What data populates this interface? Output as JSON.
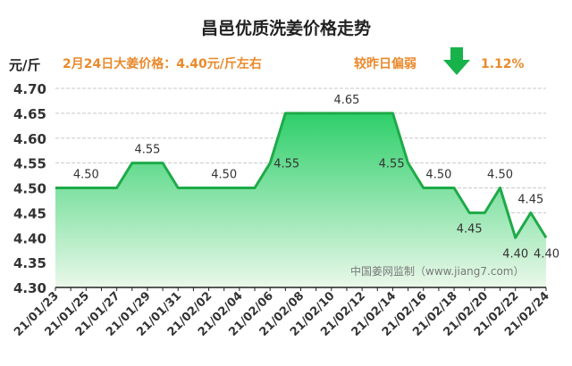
{
  "chart_data": {
    "type": "area",
    "title": "昌邑优质洗姜价格走势",
    "ylabel": "元/斤",
    "info_text": "2月24日大姜价格：4.40元/斤左右",
    "change_label": "较昨日偏弱",
    "change_value": "1.12%",
    "watermark": "中国姜网监制（www.jiang7.com）",
    "ylim": [
      4.3,
      4.7
    ],
    "y_ticks": [
      "4.30",
      "4.35",
      "4.40",
      "4.45",
      "4.50",
      "4.55",
      "4.60",
      "4.65",
      "4.70"
    ],
    "grid": true,
    "x": [
      "21/01/23",
      "21/01/24",
      "21/01/25",
      "21/01/26",
      "21/01/27",
      "21/01/28",
      "21/01/29",
      "21/01/30",
      "21/01/31",
      "21/02/01",
      "21/02/02",
      "21/02/03",
      "21/02/04",
      "21/02/05",
      "21/02/06",
      "21/02/07",
      "21/02/08",
      "21/02/09",
      "21/02/10",
      "21/02/11",
      "21/02/12",
      "21/02/13",
      "21/02/14",
      "21/02/15",
      "21/02/16",
      "21/02/17",
      "21/02/18",
      "21/02/19",
      "21/02/20",
      "21/02/21",
      "21/02/22",
      "21/02/23",
      "21/02/24"
    ],
    "x_tick_labels": [
      "21/01/23",
      "21/01/25",
      "21/01/27",
      "21/01/29",
      "21/01/31",
      "21/02/02",
      "21/02/04",
      "21/02/06",
      "21/02/08",
      "21/02/10",
      "21/02/12",
      "21/02/14",
      "21/02/16",
      "21/02/18",
      "21/02/20",
      "21/02/22",
      "21/02/24"
    ],
    "values": [
      4.5,
      4.5,
      4.5,
      4.5,
      4.5,
      4.55,
      4.55,
      4.55,
      4.5,
      4.5,
      4.5,
      4.5,
      4.5,
      4.5,
      4.55,
      4.65,
      4.65,
      4.65,
      4.65,
      4.65,
      4.65,
      4.65,
      4.65,
      4.55,
      4.5,
      4.5,
      4.5,
      4.45,
      4.45,
      4.5,
      4.4,
      4.45,
      4.4
    ],
    "data_labels": [
      {
        "index": 2,
        "text": "4.50",
        "pos": "above"
      },
      {
        "index": 6,
        "text": "4.55",
        "pos": "above"
      },
      {
        "index": 11,
        "text": "4.50",
        "pos": "above"
      },
      {
        "index": 14,
        "text": "4.55",
        "pos": "right"
      },
      {
        "index": 19,
        "text": "4.65",
        "pos": "above"
      },
      {
        "index": 23,
        "text": "4.55",
        "pos": "left"
      },
      {
        "index": 25,
        "text": "4.50",
        "pos": "above"
      },
      {
        "index": 27,
        "text": "4.45",
        "pos": "below"
      },
      {
        "index": 29,
        "text": "4.50",
        "pos": "above"
      },
      {
        "index": 30,
        "text": "4.40",
        "pos": "below"
      },
      {
        "index": 31,
        "text": "4.45",
        "pos": "above"
      },
      {
        "index": 32,
        "text": "4.40",
        "pos": "below"
      }
    ],
    "colors": {
      "line": "#1eaa48",
      "fill_top": "#2ecf6a",
      "fill_bottom": "#eaf8ea",
      "title": "#222222",
      "info": "#e98a2c",
      "arrow": "#18b24a",
      "axis_text": "#333333",
      "grid": "#c8c8c8",
      "label": "#333333",
      "watermark": "#7a7a7a"
    }
  }
}
